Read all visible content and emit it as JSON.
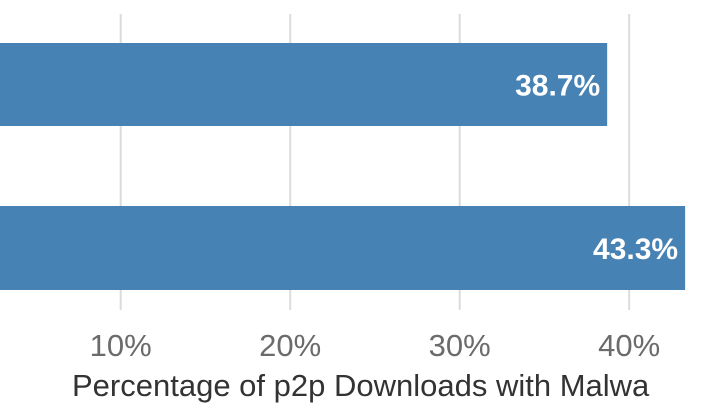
{
  "chart_data": {
    "type": "bar",
    "orientation": "horizontal",
    "categories": [
      "",
      ""
    ],
    "values": [
      38.7,
      43.3
    ],
    "value_labels": [
      "38.7%",
      "43.3%"
    ],
    "xlabel": "Percentage of p2p Downloads with Malwa",
    "ylabel": "",
    "title": "",
    "xlim": [
      0,
      46
    ],
    "xticks": [
      10,
      20,
      30,
      40
    ],
    "xtick_labels": [
      "10%",
      "20%",
      "30%",
      "40%"
    ],
    "grid": "vertical",
    "legend": "none",
    "colors": {
      "bar": "#4682b4",
      "grid": "#dcdcdc",
      "tick_text": "#6b6b6b",
      "label_text": "#ffffff",
      "axis_title": "#333333"
    }
  }
}
